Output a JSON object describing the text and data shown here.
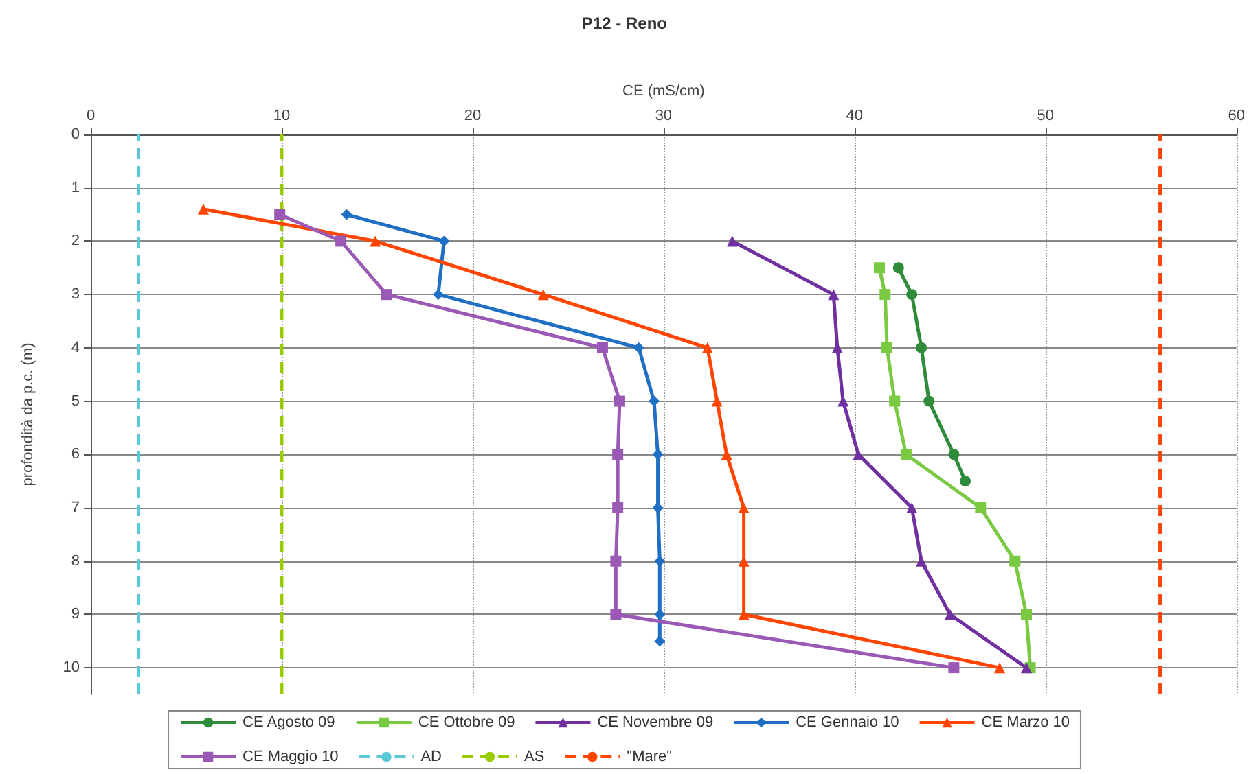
{
  "chart_data": {
    "type": "line",
    "title": "P12 - Reno",
    "xlabel": "CE (mS/cm)",
    "ylabel": "profondità da p.c. (m)",
    "xlim": [
      0,
      60
    ],
    "xticks": [
      0,
      10,
      20,
      30,
      40,
      50,
      60
    ],
    "ylim": [
      10.5,
      0
    ],
    "yticks": [
      0,
      1,
      2,
      3,
      4,
      5,
      6,
      7,
      8,
      9,
      10
    ],
    "grid": true,
    "legend": "bottom",
    "line_style": "solid",
    "series": [
      {
        "name": "CE Agosto 09",
        "color": "#2e8b3a",
        "marker": "circle",
        "x": [
          42.3,
          43.0,
          43.5,
          43.9,
          45.2,
          45.8
        ],
        "values": [
          2.5,
          3,
          4,
          5,
          6,
          6.5
        ]
      },
      {
        "name": "CE Ottobre 09",
        "color": "#7ac943",
        "marker": "square",
        "x": [
          41.3,
          41.6,
          41.7,
          42.1,
          42.7,
          46.6,
          48.4,
          49.0,
          49.2
        ],
        "values": [
          2.5,
          3,
          4,
          5,
          6,
          7,
          8,
          9,
          10
        ]
      },
      {
        "name": "CE Novembre 09",
        "color": "#7030a0",
        "marker": "triangle",
        "x": [
          33.6,
          38.9,
          39.1,
          39.4,
          40.2,
          43.0,
          43.5,
          45.0,
          49.0
        ],
        "values": [
          2,
          3,
          4,
          5,
          6,
          7,
          8,
          9,
          10
        ]
      },
      {
        "name": "CE Gennaio 10",
        "color": "#1f6fc5",
        "marker": "diamond",
        "x": [
          13.4,
          18.5,
          18.2,
          28.7,
          29.5,
          29.7,
          29.7,
          29.8,
          29.8,
          29.8
        ],
        "values": [
          1.5,
          2,
          3,
          4,
          5,
          6,
          7,
          8,
          9,
          9.5
        ]
      },
      {
        "name": "CE Marzo 10",
        "color": "#ff4500",
        "marker": "triangle",
        "x": [
          5.9,
          14.9,
          23.7,
          32.3,
          32.8,
          33.3,
          34.2,
          34.2,
          34.2,
          47.6
        ],
        "values": [
          1.4,
          2,
          3,
          4,
          5,
          6,
          7,
          8,
          9,
          10
        ]
      },
      {
        "name": "CE Maggio 10",
        "color": "#9b59b6",
        "marker": "square",
        "x": [
          9.9,
          13.1,
          15.5,
          26.8,
          27.7,
          27.6,
          27.6,
          27.5,
          27.5,
          45.2
        ],
        "values": [
          1.5,
          2,
          3,
          4,
          5,
          6,
          7,
          8,
          9,
          10
        ]
      }
    ],
    "ref_lines": [
      {
        "axis": "x",
        "value": 2.5,
        "label": "AD",
        "color": "#5bc8d8",
        "line_style": "dashed"
      },
      {
        "axis": "x",
        "value": 10,
        "label": "AS",
        "color": "#99cc00",
        "line_style": "dashed"
      },
      {
        "axis": "x",
        "value": 56,
        "label": "\"Mare\"",
        "color": "#ff4500",
        "line_style": "dashed"
      }
    ]
  }
}
